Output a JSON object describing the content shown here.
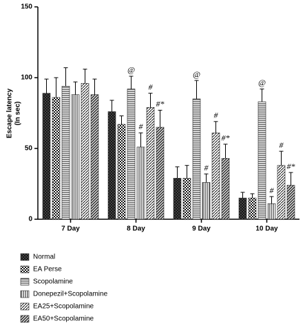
{
  "chart_data": {
    "type": "bar",
    "ylabel": [
      "Escape latency",
      "(In sec)"
    ],
    "categories": [
      "7 Day",
      "8 Day",
      "9 Day",
      "10 Day"
    ],
    "ylim": [
      0,
      150
    ],
    "yticks": [
      0,
      50,
      100,
      150
    ],
    "series": [
      {
        "name": "Normal",
        "pattern": "dark",
        "color": "#333333",
        "values": [
          89,
          76,
          29,
          15
        ],
        "errors": [
          10,
          8,
          8,
          4
        ],
        "annotations": [
          null,
          null,
          null,
          null
        ]
      },
      {
        "name": "EA Perse",
        "pattern": "checker",
        "color": "#222222",
        "values": [
          86,
          67,
          29,
          15
        ],
        "errors": [
          14,
          6,
          9,
          3
        ],
        "annotations": [
          null,
          null,
          null,
          null
        ]
      },
      {
        "name": "Scopolamine",
        "pattern": "horizontal",
        "color": "#222222",
        "values": [
          94,
          92,
          85,
          83
        ],
        "errors": [
          13,
          9,
          13,
          9
        ],
        "annotations": [
          null,
          "@",
          "@",
          "@"
        ]
      },
      {
        "name": "Donepezil+Scopolamine",
        "pattern": "vertical",
        "color": "#222222",
        "values": [
          88,
          51,
          26,
          11
        ],
        "errors": [
          9,
          10,
          6,
          5
        ],
        "annotations": [
          null,
          "#",
          "#",
          "#"
        ]
      },
      {
        "name": "EA25+Scopolamine",
        "pattern": "diagonal",
        "color": "#222222",
        "values": [
          96,
          79,
          61,
          38
        ],
        "errors": [
          10,
          10,
          8,
          10
        ],
        "annotations": [
          null,
          "#",
          "#",
          "#"
        ]
      },
      {
        "name": "EA50+Scopolamine",
        "pattern": "diagonal-dense",
        "color": "#222222",
        "values": [
          88,
          65,
          43,
          24
        ],
        "errors": [
          11,
          12,
          10,
          9
        ],
        "annotations": [
          null,
          "#*",
          "#*",
          "#*"
        ]
      }
    ]
  }
}
